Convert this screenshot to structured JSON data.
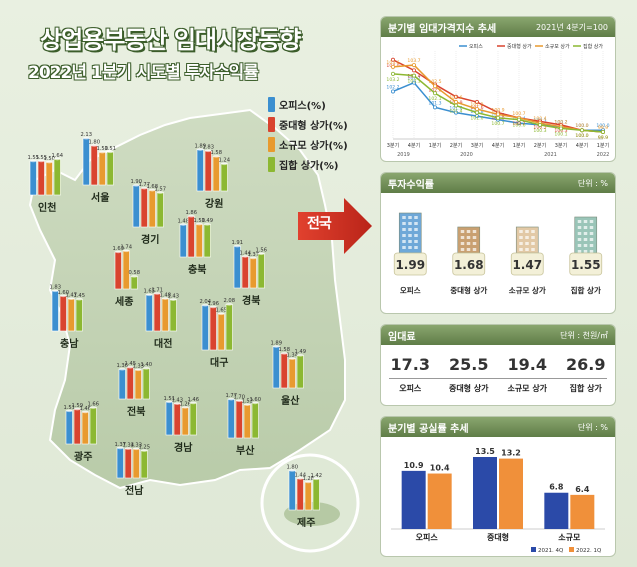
{
  "title": "상업용부동산 임대시장동향",
  "subtitle": "2022년 1분기 시도별 투자수익률",
  "legend": [
    "오피스(%)",
    "중대형 상가(%)",
    "소규모 상가(%)",
    "집합 상가(%)"
  ],
  "arrow_label": "전국",
  "colors": {
    "office": "#3b8fd0",
    "midlarge": "#d9442f",
    "small": "#e89a2f",
    "collective": "#8cb832",
    "panel_head": "#6b8a52",
    "vac_2021": "#2b4aa8",
    "vac_2022": "#f0903a"
  },
  "chart_data": [
    {
      "type": "bar",
      "title": "2022년 1분기 시도별 투자수익률",
      "series_order": [
        "오피스(%)",
        "중대형 상가(%)",
        "소규모 상가(%)",
        "집합 상가(%)"
      ],
      "regions": [
        {
          "name": "인천",
          "values": [
            1.55,
            1.55,
            1.5,
            1.64
          ]
        },
        {
          "name": "서울",
          "values": [
            2.13,
            1.8,
            1.5,
            1.51
          ]
        },
        {
          "name": "경기",
          "values": [
            1.9,
            1.77,
            1.68,
            1.57
          ]
        },
        {
          "name": "강원",
          "values": [
            1.89,
            1.83,
            1.58,
            1.24
          ]
        },
        {
          "name": "충북",
          "values": [
            1.48,
            1.86,
            1.5,
            1.49
          ]
        },
        {
          "name": "세종",
          "values": [
            null,
            1.69,
            1.74,
            0.58
          ]
        },
        {
          "name": "충남",
          "values": [
            1.83,
            1.6,
            1.47,
            1.45
          ]
        },
        {
          "name": "대전",
          "values": [
            1.65,
            1.71,
            1.48,
            1.43
          ]
        },
        {
          "name": "경북",
          "values": [
            1.91,
            1.44,
            1.37,
            1.56
          ]
        },
        {
          "name": "대구",
          "values": [
            2.04,
            1.96,
            1.65,
            2.08
          ]
        },
        {
          "name": "전북",
          "values": [
            1.36,
            1.45,
            1.33,
            1.4
          ]
        },
        {
          "name": "울산",
          "values": [
            1.89,
            1.58,
            1.34,
            1.49
          ]
        },
        {
          "name": "광주",
          "values": [
            1.51,
            1.59,
            1.46,
            1.66
          ]
        },
        {
          "name": "경남",
          "values": [
            1.51,
            1.43,
            1.26,
            1.46
          ]
        },
        {
          "name": "부산",
          "values": [
            1.77,
            1.7,
            1.52,
            1.6
          ]
        },
        {
          "name": "전남",
          "values": [
            1.37,
            1.34,
            1.33,
            1.25
          ]
        },
        {
          "name": "제주",
          "values": [
            1.8,
            1.44,
            1.28,
            1.42
          ]
        }
      ]
    },
    {
      "type": "line",
      "title": "분기별 임대가격지수 추세",
      "note": "2021년 4분기=100",
      "x": [
        "3분기",
        "4분기",
        "1분기",
        "2분기",
        "3분기",
        "4분기",
        "1분기",
        "2분기",
        "3분기",
        "4분기",
        "1분기"
      ],
      "years": [
        "2019",
        "2020",
        "2021",
        "2022"
      ],
      "series": [
        {
          "name": "오피스",
          "values": [
            102.2,
            102.7,
            101.3,
            101.0,
            100.8,
            100.6,
            100.4,
            100.3,
            100.2,
            100.0,
            100.0
          ]
        },
        {
          "name": "중대형 상가",
          "values": [
            104.0,
            103.4,
            102.6,
            101.9,
            101.6,
            101.0,
            100.7,
            100.5,
            100.3,
            100.0,
            99.9
          ]
        },
        {
          "name": "소규모 상가",
          "values": [
            103.6,
            103.7,
            102.5,
            101.6,
            101.2,
            100.9,
            100.7,
            100.4,
            100.2,
            100.0,
            99.9
          ]
        },
        {
          "name": "집합 상가",
          "values": [
            103.2,
            103.1,
            102.1,
            101.4,
            101.0,
            100.7,
            100.6,
            100.3,
            100.1,
            100.0,
            99.9
          ]
        }
      ],
      "ylim": [
        99.5,
        104.5
      ]
    },
    {
      "type": "table",
      "title": "투자수익률",
      "unit": "단위 : %",
      "categories": [
        "오피스",
        "중대형 상가",
        "소규모 상가",
        "집합 상가"
      ],
      "values": [
        1.99,
        1.68,
        1.47,
        1.55
      ]
    },
    {
      "type": "table",
      "title": "임대료",
      "unit": "단위 : 천원/㎡",
      "categories": [
        "오피스",
        "중대형 상가",
        "소규모 상가",
        "집합 상가"
      ],
      "values": [
        17.3,
        25.5,
        19.4,
        26.9
      ]
    },
    {
      "type": "bar",
      "title": "분기별 공실률 추세",
      "unit": "단위 : %",
      "categories": [
        "오피스",
        "중대형",
        "소규모"
      ],
      "series": [
        {
          "name": "2021. 4Q",
          "values": [
            10.9,
            13.5,
            6.8
          ]
        },
        {
          "name": "2022. 1Q",
          "values": [
            10.4,
            13.2,
            6.4
          ]
        }
      ],
      "ylim": [
        0,
        15
      ]
    }
  ]
}
